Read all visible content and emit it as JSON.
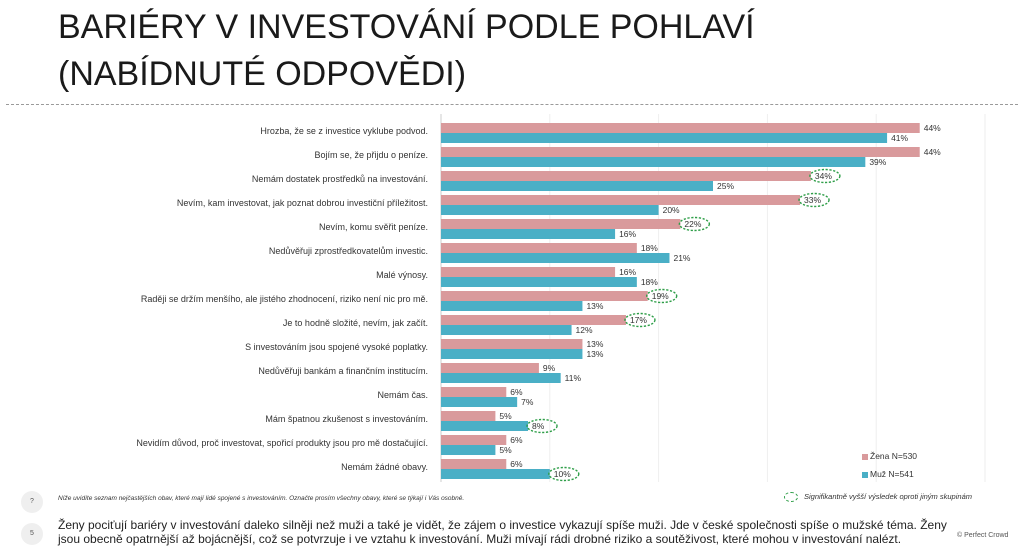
{
  "title": {
    "line1": "BARIÉRY V INVESTOVÁNÍ PODLE POHLAVÍ",
    "line2": "(NABÍDNUTÉ ODPOVĚDI)"
  },
  "colors": {
    "zena": "#d99a9c",
    "muz": "#4aafc6",
    "significance": "#2e9e48"
  },
  "legend": {
    "zena": "Žena N=530",
    "muz": "Muž N=541"
  },
  "significance_note": "Signifikantně vyšší výsledek oproti jiným skupinám",
  "question_note": "Níže uvidíte seznam nejčastějších obav, které mají lidé spojené s investováním. Označte prosím všechny obavy, které se týkají i Vás osobně.",
  "question_icon": "?",
  "page_number": "5",
  "summary": "Ženy pociťují bariéry v investování daleko silněji než muži a také je vidět, že zájem o investice vykazují spíše muži. Jde v české společnosti spíše o mužské téma. Ženy jsou obecně opatrnější až bojácnější, což se potvrzuje i ve vztahu k investování. Muži mívají rádi drobné riziko a soutěživost, které mohou v investování nalézt.",
  "copyright": "© Perfect Crowd",
  "chart_data": {
    "type": "bar",
    "orientation": "horizontal",
    "categories": [
      "Hrozba, že se z investice vyklube podvod.",
      "Bojím se, že přijdu o peníze.",
      "Nemám dostatek prostředků na investování.",
      "Nevím, kam investovat, jak poznat dobrou investiční příležitost.",
      "Nevím, komu svěřit peníze.",
      "Nedůvěřuji zprostředkovatelům investic.",
      "Malé výnosy.",
      "Raději se držím menšího, ale jistého zhodnocení, riziko není nic pro mě.",
      "Je to hodně složité, nevím, jak začít.",
      "S investováním jsou spojené vysoké poplatky.",
      "Nedůvěřuji bankám a finančním institucím.",
      "Nemám čas.",
      "Mám špatnou zkušenost s investováním.",
      "Nevidím důvod, proč investovat, spořicí produkty jsou pro mě dostačující.",
      "Nemám žádné obavy."
    ],
    "series": [
      {
        "name": "Žena N=530",
        "values": [
          44,
          44,
          34,
          33,
          22,
          18,
          16,
          19,
          17,
          13,
          9,
          6,
          5,
          6,
          6
        ],
        "labels": [
          "44%",
          "44%",
          "34%",
          "33%",
          "22%",
          "18%",
          "16%",
          "19%",
          "17%",
          "13%",
          "9%",
          "6%",
          "5%",
          "6%",
          "6%"
        ],
        "significant": [
          false,
          false,
          true,
          true,
          true,
          false,
          false,
          true,
          true,
          false,
          false,
          false,
          false,
          false,
          false
        ]
      },
      {
        "name": "Muž N=541",
        "values": [
          41,
          39,
          25,
          20,
          16,
          21,
          18,
          13,
          12,
          13,
          11,
          7,
          8,
          5,
          10
        ],
        "labels": [
          "41%",
          "39%",
          "25%",
          "20%",
          "16%",
          "21%",
          "18%",
          "13%",
          "12%",
          "13%",
          "11%",
          "7%",
          "8%",
          "5%",
          "10%"
        ],
        "significant": [
          false,
          false,
          false,
          false,
          false,
          false,
          false,
          false,
          false,
          false,
          false,
          false,
          true,
          false,
          true
        ]
      }
    ],
    "xlim": [
      0,
      50
    ],
    "grid": true,
    "legend_position": "bottom-right"
  }
}
